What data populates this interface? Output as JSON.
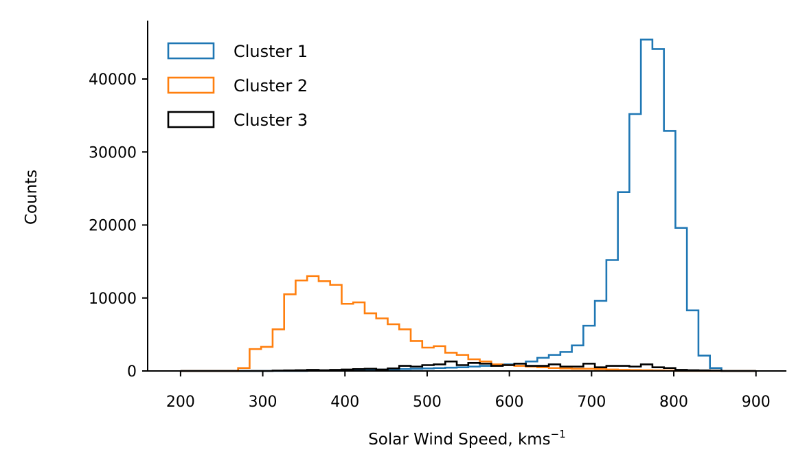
{
  "chart_data": {
    "type": "histogram",
    "xlabel": "Solar Wind Speed, kms",
    "xlabel_superscript": "−1",
    "ylabel": "Counts",
    "xlim": [
      160,
      937
    ],
    "ylim": [
      0,
      48000
    ],
    "x_ticks": [
      200,
      300,
      400,
      500,
      600,
      700,
      800,
      900
    ],
    "y_ticks": [
      0,
      10000,
      20000,
      30000,
      40000
    ],
    "grid": false,
    "legend_position": "top-left",
    "bin_edges": [
      200,
      214,
      228,
      242,
      256,
      270,
      284,
      298,
      312,
      326,
      340,
      354,
      368,
      382,
      396,
      410,
      424,
      438,
      452,
      466,
      480,
      494,
      508,
      522,
      536,
      550,
      564,
      578,
      592,
      606,
      620,
      634,
      648,
      662,
      676,
      690,
      704,
      718,
      732,
      746,
      760,
      774,
      788,
      802,
      816,
      830,
      844,
      858,
      872,
      886,
      900
    ],
    "series": [
      {
        "name": "Cluster 1",
        "color": "#1f77b4",
        "counts": [
          0,
          0,
          0,
          0,
          0,
          0,
          0,
          0,
          0,
          0,
          0,
          50,
          60,
          80,
          100,
          120,
          150,
          180,
          220,
          260,
          300,
          350,
          400,
          450,
          500,
          600,
          700,
          800,
          900,
          1000,
          1300,
          1800,
          2200,
          2600,
          3500,
          6200,
          9600,
          15200,
          24500,
          35200,
          45400,
          44100,
          32900,
          19600,
          8300,
          2100,
          400,
          0,
          0,
          0
        ]
      },
      {
        "name": "Cluster 2",
        "color": "#ff7f0e",
        "counts": [
          0,
          0,
          0,
          0,
          0,
          400,
          3000,
          3300,
          5700,
          10500,
          12400,
          13000,
          12300,
          11800,
          9200,
          9400,
          7900,
          7200,
          6400,
          5700,
          4100,
          3200,
          3400,
          2500,
          2200,
          1600,
          1300,
          900,
          800,
          700,
          600,
          500,
          400,
          350,
          300,
          300,
          250,
          200,
          150,
          120,
          100,
          80,
          50,
          0,
          0,
          0,
          0,
          0,
          0,
          0
        ]
      },
      {
        "name": "Cluster 3",
        "color": "#000000",
        "counts": [
          0,
          0,
          0,
          0,
          0,
          0,
          0,
          0,
          50,
          80,
          100,
          150,
          100,
          150,
          200,
          250,
          300,
          200,
          350,
          700,
          600,
          800,
          900,
          1300,
          800,
          1100,
          1000,
          700,
          800,
          1000,
          700,
          700,
          900,
          600,
          600,
          1000,
          500,
          700,
          700,
          600,
          900,
          500,
          400,
          150,
          100,
          80,
          50,
          0,
          0,
          0
        ]
      }
    ]
  }
}
